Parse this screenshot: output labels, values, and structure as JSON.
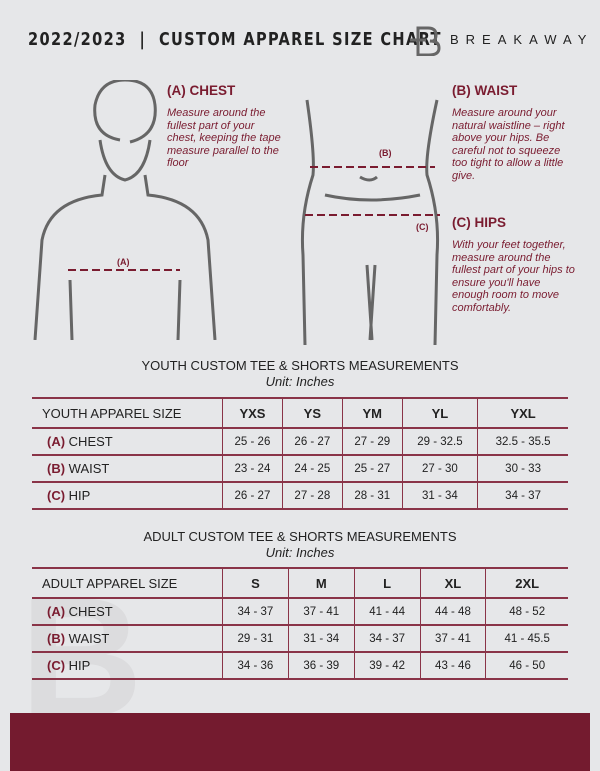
{
  "header": {
    "title": "2022/2023  |  CUSTOM APPAREL SIZE CHART",
    "brand": "BREAKAWAY"
  },
  "guide": {
    "chest": {
      "heading": "(A) CHEST",
      "text": "Measure around the fullest part of your chest, keeping the tape measure parallel to the floor",
      "marker": "(A)"
    },
    "waist": {
      "heading": "(B) WAIST",
      "text": "Measure around your natural waistline – right above your hips. Be careful not to squeeze too tight to allow a little give.",
      "marker": "(B)"
    },
    "hips": {
      "heading": "(C) HIPS",
      "text": "With your feet together, measure around the fullest part of your hips to ensure you'll have enough room to move comfortably.",
      "marker": "(C)"
    }
  },
  "colors": {
    "accent": "#7a1c30",
    "background": "#e6e7e9"
  },
  "youth": {
    "title": "YOUTH CUSTOM TEE & SHORTS MEASUREMENTS",
    "unit": "Unit: Inches",
    "header": "YOUTH APPAREL SIZE",
    "sizes": [
      "YXS",
      "YS",
      "YM",
      "YL",
      "YXL"
    ],
    "rows": [
      {
        "code": "(A)",
        "name": "CHEST",
        "values": [
          "25 - 26",
          "26 - 27",
          "27 - 29",
          "29 - 32.5",
          "32.5 - 35.5"
        ]
      },
      {
        "code": "(B)",
        "name": "WAIST",
        "values": [
          "23 - 24",
          "24 - 25",
          "25 - 27",
          "27 - 30",
          "30 - 33"
        ]
      },
      {
        "code": "(C)",
        "name": "HIP",
        "values": [
          "26 - 27",
          "27 - 28",
          "28 - 31",
          "31 - 34",
          "34 - 37"
        ]
      }
    ]
  },
  "adult": {
    "title": "ADULT CUSTOM TEE & SHORTS MEASUREMENTS",
    "unit": "Unit: Inches",
    "header": "ADULT APPAREL SIZE",
    "sizes": [
      "S",
      "M",
      "L",
      "XL",
      "2XL"
    ],
    "rows": [
      {
        "code": "(A)",
        "name": "CHEST",
        "values": [
          "34 - 37",
          "37 - 41",
          "41 - 44",
          "44 - 48",
          "48 - 52"
        ]
      },
      {
        "code": "(B)",
        "name": "WAIST",
        "values": [
          "29 - 31",
          "31 - 34",
          "34 - 37",
          "37 - 41",
          "41 - 45.5"
        ]
      },
      {
        "code": "(C)",
        "name": "HIP",
        "values": [
          "34 - 36",
          "36 - 39",
          "39 - 42",
          "43 - 46",
          "46 - 50"
        ]
      }
    ]
  }
}
